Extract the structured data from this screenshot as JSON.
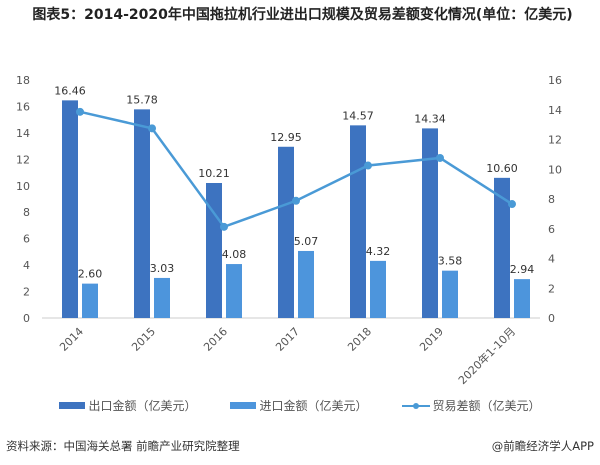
{
  "title": "图表5：2014-2020年中国拖拉机行业进出口规模及贸易差额变化情况(单位：亿美元)",
  "chart_data": {
    "type": "bar+line",
    "title": "图表5：2014-2020年中国拖拉机行业进出口规模及贸易差额变化情况(单位：亿美元)",
    "categories": [
      "2014",
      "2015",
      "2016",
      "2017",
      "2018",
      "2019",
      "2020年1-10月"
    ],
    "series": [
      {
        "name": "出口金额（亿美元）",
        "type": "bar",
        "axis": "left",
        "color": "#3d73c0",
        "values": [
          16.46,
          15.78,
          10.21,
          12.95,
          14.57,
          14.34,
          10.6
        ],
        "labels": [
          "16.46",
          "15.78",
          "10.21",
          "12.95",
          "14.57",
          "14.34",
          "10.60"
        ]
      },
      {
        "name": "进口金额（亿美元）",
        "type": "bar",
        "axis": "left",
        "color": "#4d95dc",
        "values": [
          2.6,
          3.03,
          4.08,
          5.07,
          4.32,
          3.58,
          2.94
        ],
        "labels": [
          "2.60",
          "3.03",
          "4.08",
          "5.07",
          "4.32",
          "3.58",
          "2.94"
        ]
      },
      {
        "name": "贸易差额（亿美元）",
        "type": "line",
        "axis": "right",
        "color": "#4a9ad6",
        "values": [
          13.86,
          12.75,
          6.13,
          7.88,
          10.25,
          10.76,
          7.66
        ]
      }
    ],
    "y_left": {
      "min": 0,
      "max": 18,
      "ticks": [
        0,
        2,
        4,
        6,
        8,
        10,
        12,
        14,
        16,
        18
      ]
    },
    "y_right": {
      "min": 0,
      "max": 16,
      "ticks": [
        0,
        2,
        4,
        6,
        8,
        10,
        12,
        14,
        16
      ]
    },
    "grid": false,
    "legend": "bottom"
  },
  "source": "资料来源：中国海关总署 前瞻产业研究院整理",
  "credit": "@前瞻经济学人APP"
}
